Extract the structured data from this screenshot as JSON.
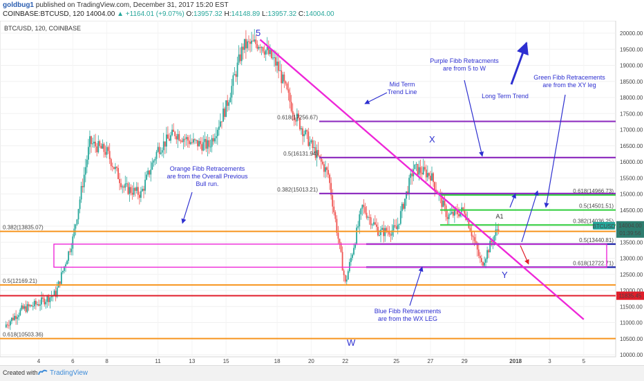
{
  "header": {
    "author": "goldbug1",
    "published": "published on TradingView.com, December 31, 2017 15:20 EST",
    "symbol": "COINBASE:BTCUSD, 120",
    "price": "14004.00",
    "change": "+1164.01 (+9.07%)",
    "open_label": "O:",
    "open": "13957.32",
    "high_label": "H:",
    "high": "14148.89",
    "low_label": "L:",
    "low": "13957.32",
    "close_label": "C:",
    "close": "14004.00"
  },
  "footer": {
    "created": "Created with",
    "brand": "TradingView"
  },
  "colors": {
    "up": "#26a69a",
    "down": "#ef5350",
    "trend": "#ee27d8",
    "annotation": "#2d2fd0",
    "fib_label": "#b238c9",
    "orange": "#f7941d",
    "purple": "#8f2fc0",
    "blue": "#1e22a8",
    "green": "#39d045",
    "red": "#e01e2a"
  },
  "chart_data": {
    "type": "candlestick",
    "title": "BTC/USD, 120, COINBASE",
    "x_ticks": [
      "4",
      "6",
      "8",
      "11",
      "13",
      "15",
      "18",
      "20",
      "22",
      "25",
      "27",
      "29",
      "2018",
      "3",
      "5"
    ],
    "y_ticks": [
      10000,
      10500,
      11000,
      11500,
      12000,
      12500,
      13000,
      13500,
      14000,
      14500,
      15000,
      15500,
      16000,
      16500,
      17000,
      17500,
      18000,
      18500,
      19000,
      19500,
      20000
    ],
    "ylim": [
      9750,
      20400
    ],
    "price_path": [
      {
        "x": "Dec 2",
        "y": 10900
      },
      {
        "x": "Dec 3",
        "y": 11400
      },
      {
        "x": "Dec 4",
        "y": 11600
      },
      {
        "x": "Dec 5",
        "y": 11900
      },
      {
        "x": "Dec 6",
        "y": 13600
      },
      {
        "x": "Dec 7",
        "y": 16600
      },
      {
        "x": "Dec 8",
        "y": 16300
      },
      {
        "x": "Dec 9",
        "y": 15200
      },
      {
        "x": "Dec 10",
        "y": 15000
      },
      {
        "x": "Dec 11",
        "y": 16400
      },
      {
        "x": "Dec 12",
        "y": 16900
      },
      {
        "x": "Dec 13",
        "y": 16600
      },
      {
        "x": "Dec 14",
        "y": 16500
      },
      {
        "x": "Dec 15",
        "y": 17700
      },
      {
        "x": "Dec 16",
        "y": 19600
      },
      {
        "x": "Dec 17",
        "y": 19700
      },
      {
        "x": "Dec 18",
        "y": 19000
      },
      {
        "x": "Dec 19",
        "y": 17500
      },
      {
        "x": "Dec 20",
        "y": 16500
      },
      {
        "x": "Dec 21",
        "y": 15600
      },
      {
        "x": "Dec 22",
        "y": 12200
      },
      {
        "x": "Dec 23",
        "y": 14600
      },
      {
        "x": "Dec 24",
        "y": 13800
      },
      {
        "x": "Dec 25",
        "y": 13900
      },
      {
        "x": "Dec 26",
        "y": 15800
      },
      {
        "x": "Dec 27",
        "y": 15600
      },
      {
        "x": "Dec 28",
        "y": 14300
      },
      {
        "x": "Dec 29",
        "y": 14500
      },
      {
        "x": "Dec 30",
        "y": 12800
      },
      {
        "x": "Dec 31",
        "y": 14004
      }
    ],
    "trend_line": [
      {
        "x": "Dec 17",
        "y": 19800
      },
      {
        "x": "Jan 5",
        "y": 11100
      }
    ],
    "fib_levels": [
      {
        "group": "orange",
        "label": "0.382(13835.07)",
        "value": 13835.07
      },
      {
        "group": "orange",
        "label": "0.5(12169.21)",
        "value": 12169.21
      },
      {
        "group": "orange",
        "label": "0.618(10503.36)",
        "value": 10503.36
      },
      {
        "group": "purple",
        "label": "0.618(17256.67)",
        "value": 17256.67
      },
      {
        "group": "purple",
        "label": "0.5(16131.94)",
        "value": 16131.94
      },
      {
        "group": "purple",
        "label": "0.382(15013.21)",
        "value": 15013.21
      },
      {
        "group": "green",
        "label": "0.618(14966.73)",
        "value": 14966.73
      },
      {
        "group": "green",
        "label": "0.5(14501.51)",
        "value": 14501.51
      },
      {
        "group": "green",
        "label": "0.382(14036.25)",
        "value": 14036.25
      },
      {
        "group": "blue",
        "label": "0.5(13440.81)",
        "value": 13440.81
      },
      {
        "group": "blue",
        "label": "0.618(12722.71)",
        "value": 12722.71
      }
    ],
    "support_level": {
      "label": "11835.45",
      "value": 11835.45
    },
    "price_label": "14004.00",
    "countdown": "01:39:56",
    "ticker_tag": "BTCUSD",
    "wave_labels": [
      "5",
      "W",
      "X",
      "Y",
      "A1"
    ],
    "annotations": [
      "Orange Fibb Retracements are from the Overall Previous Bull run.",
      "Mid Term Trend Line",
      "Purple Fibb Retracments are from 5 to W",
      "Long Term Trend",
      "Green Fibb Retracements are from the XY leg",
      "Blue Fibb Retracements are from the WX LEG"
    ]
  }
}
